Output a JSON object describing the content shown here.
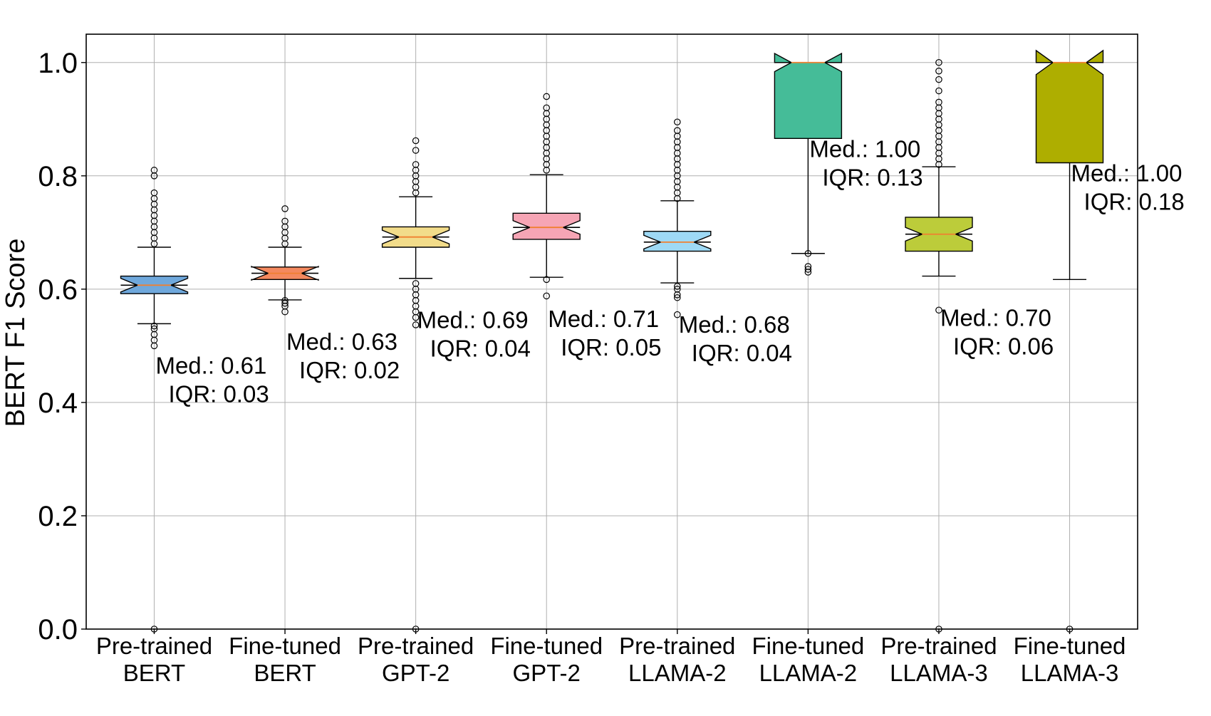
{
  "chart_data": {
    "type": "box",
    "title": "",
    "xlabel": "",
    "ylabel": "BERT F1 Score",
    "ylim": [
      0.0,
      1.05
    ],
    "yticks": [
      "0.0",
      "0.2",
      "0.4",
      "0.6",
      "0.8",
      "1.0"
    ],
    "grid": true,
    "categories": [
      {
        "line1": "Pre-trained",
        "line2": "BERT",
        "color": "#6fa8dc",
        "q1": 0.592,
        "median": 0.607,
        "q3": 0.623,
        "whisker_low": 0.539,
        "whisker_high": 0.674,
        "outliers": [
          0.0,
          0.5,
          0.51,
          0.52,
          0.53,
          0.535,
          0.68,
          0.69,
          0.7,
          0.71,
          0.72,
          0.73,
          0.74,
          0.75,
          0.76,
          0.77,
          0.8,
          0.81
        ],
        "ann_med": "Med.: 0.61",
        "ann_iqr": "IQR: 0.03"
      },
      {
        "line1": "Fine-tuned",
        "line2": "BERT",
        "color": "#f4895f",
        "q1": 0.617,
        "median": 0.628,
        "q3": 0.639,
        "whisker_low": 0.581,
        "whisker_high": 0.674,
        "outliers": [
          0.56,
          0.57,
          0.575,
          0.58,
          0.68,
          0.69,
          0.7,
          0.71,
          0.72,
          0.742
        ],
        "ann_med": "Med.: 0.63",
        "ann_iqr": "IQR: 0.02"
      },
      {
        "line1": "Pre-trained",
        "line2": "GPT-2",
        "color": "#f2dc8a",
        "q1": 0.674,
        "median": 0.692,
        "q3": 0.71,
        "whisker_low": 0.619,
        "whisker_high": 0.763,
        "outliers": [
          0.0,
          0.537,
          0.55,
          0.56,
          0.57,
          0.58,
          0.59,
          0.6,
          0.61,
          0.77,
          0.78,
          0.79,
          0.8,
          0.81,
          0.82,
          0.845,
          0.862
        ],
        "ann_med": "Med.: 0.69",
        "ann_iqr": "IQR: 0.04"
      },
      {
        "line1": "Fine-tuned",
        "line2": "GPT-2",
        "color": "#f6a5b5",
        "q1": 0.688,
        "median": 0.709,
        "q3": 0.734,
        "whisker_low": 0.621,
        "whisker_high": 0.802,
        "outliers": [
          0.588,
          0.617,
          0.81,
          0.82,
          0.83,
          0.84,
          0.85,
          0.86,
          0.87,
          0.88,
          0.89,
          0.9,
          0.91,
          0.92,
          0.94
        ],
        "ann_med": "Med.: 0.71",
        "ann_iqr": "IQR: 0.05"
      },
      {
        "line1": "Pre-trained",
        "line2": "LLAMA-2",
        "color": "#9ed9f5",
        "q1": 0.667,
        "median": 0.683,
        "q3": 0.702,
        "whisker_low": 0.611,
        "whisker_high": 0.756,
        "outliers": [
          0.555,
          0.585,
          0.59,
          0.6,
          0.605,
          0.76,
          0.77,
          0.78,
          0.79,
          0.8,
          0.81,
          0.82,
          0.83,
          0.84,
          0.85,
          0.86,
          0.87,
          0.88,
          0.895
        ],
        "ann_med": "Med.: 0.68",
        "ann_iqr": "IQR: 0.04"
      },
      {
        "line1": "Fine-tuned",
        "line2": "LLAMA-2",
        "color": "#45bc98",
        "q1": 0.866,
        "median": 1.0,
        "q3": 1.0,
        "whisker_low": 0.663,
        "whisker_high": 1.0,
        "outliers": [
          0.663,
          0.64,
          0.635,
          0.63
        ],
        "ann_med": "Med.: 1.00",
        "ann_iqr": "IQR: 0.13"
      },
      {
        "line1": "Pre-trained",
        "line2": "LLAMA-3",
        "color": "#bccc3a",
        "q1": 0.667,
        "median": 0.697,
        "q3": 0.727,
        "whisker_low": 0.623,
        "whisker_high": 0.816,
        "outliers": [
          0.0,
          0.563,
          0.82,
          0.83,
          0.84,
          0.85,
          0.86,
          0.87,
          0.88,
          0.89,
          0.9,
          0.91,
          0.92,
          0.93,
          0.95,
          0.97,
          0.985,
          1.0
        ],
        "ann_med": "Med.: 0.70",
        "ann_iqr": "IQR: 0.06"
      },
      {
        "line1": "Fine-tuned",
        "line2": "LLAMA-3",
        "color": "#aeae00",
        "q1": 0.823,
        "median": 1.0,
        "q3": 1.0,
        "whisker_low": 0.617,
        "whisker_high": 1.0,
        "outliers": [
          0.0
        ],
        "ann_med": "Med.: 1.00",
        "ann_iqr": "IQR: 0.18"
      }
    ]
  }
}
